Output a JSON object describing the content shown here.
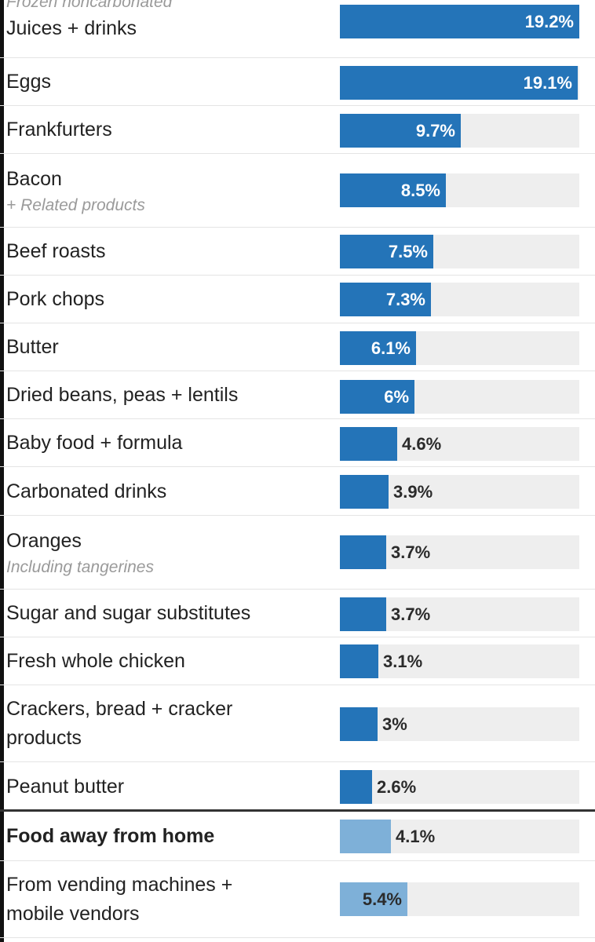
{
  "chart_data": {
    "type": "bar",
    "orientation": "horizontal",
    "xlim": [
      0,
      19.2
    ],
    "colors": {
      "bar": "#2474b8",
      "bar_secondary": "#7eb0d8",
      "track": "#eeeeee"
    },
    "rows": [
      {
        "label": "Juices + drinks",
        "note": "Frozen noncarbonated",
        "value": 19.2,
        "value_label": "19.2%"
      },
      {
        "label": "Eggs",
        "value": 19.1,
        "value_label": "19.1%"
      },
      {
        "label": "Frankfurters",
        "value": 9.7,
        "value_label": "9.7%"
      },
      {
        "label": "Bacon",
        "note": "+ Related products",
        "value": 8.5,
        "value_label": "8.5%"
      },
      {
        "label": "Beef roasts",
        "value": 7.5,
        "value_label": "7.5%"
      },
      {
        "label": "Pork chops",
        "value": 7.3,
        "value_label": "7.3%"
      },
      {
        "label": "Butter",
        "value": 6.1,
        "value_label": "6.1%"
      },
      {
        "label": "Dried beans, peas + lentils",
        "value": 6,
        "value_label": "6%"
      },
      {
        "label": "Baby food + formula",
        "value": 4.6,
        "value_label": "4.6%"
      },
      {
        "label": "Carbonated drinks",
        "value": 3.9,
        "value_label": "3.9%"
      },
      {
        "label": "Oranges",
        "note": "Including tangerines",
        "value": 3.7,
        "value_label": "3.7%"
      },
      {
        "label": "Sugar and sugar substitutes",
        "value": 3.7,
        "value_label": "3.7%"
      },
      {
        "label": "Fresh whole chicken",
        "value": 3.1,
        "value_label": "3.1%"
      },
      {
        "label": "Crackers, bread + cracker products",
        "value": 3,
        "value_label": "3%"
      },
      {
        "label": "Peanut butter",
        "value": 2.6,
        "value_label": "2.6%"
      },
      {
        "label": "Food away from home",
        "value": 4.1,
        "value_label": "4.1%",
        "bold": true,
        "secondary": true
      },
      {
        "label": "From vending machines + mobile vendors",
        "value": 5.4,
        "value_label": "5.4%",
        "secondary": true
      }
    ]
  }
}
